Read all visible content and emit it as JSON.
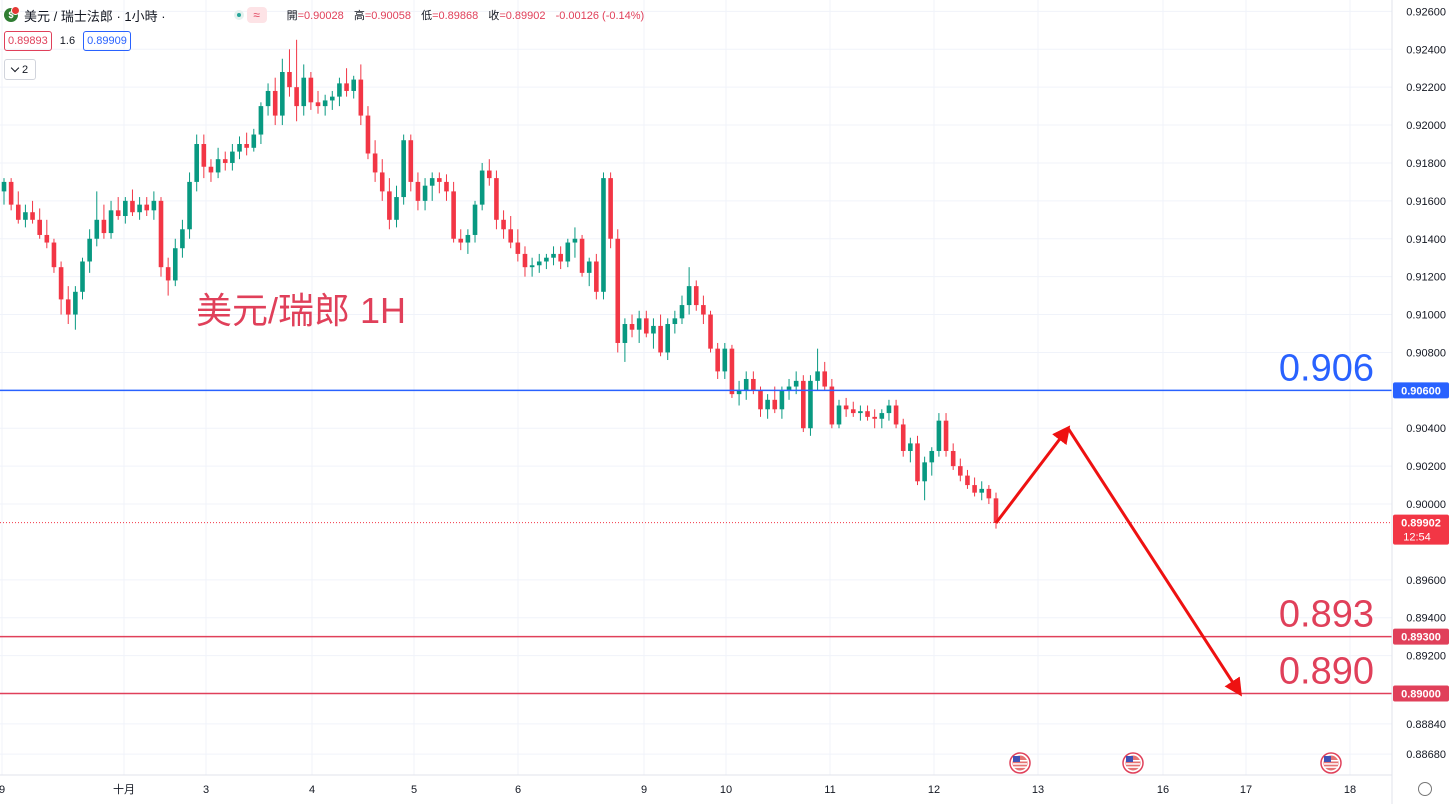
{
  "header": {
    "symbol": "美元 / 瑞士法郎 · 1小時 ·",
    "wave_icon": "≈",
    "ohlc": {
      "open_label": "開",
      "open": "=0.90028",
      "high_label": "高",
      "high": "=0.90058",
      "low_label": "低",
      "low": "=0.89868",
      "close_label": "收",
      "close": "=0.89902",
      "change": "-0.00126 (-0.14%)"
    }
  },
  "trade": {
    "bid": "0.89893",
    "spread": "1.6",
    "ask": "0.89909"
  },
  "indicator_toggle": {
    "count": "2"
  },
  "chart_title": "美元/瑞郎 1H",
  "chart_data": {
    "type": "candlestick",
    "ylim": [
      0.8857,
      0.9266
    ],
    "y_ticks": [
      {
        "v": 0.926,
        "t": "0.92600"
      },
      {
        "v": 0.924,
        "t": "0.92400"
      },
      {
        "v": 0.922,
        "t": "0.92200"
      },
      {
        "v": 0.92,
        "t": "0.92000"
      },
      {
        "v": 0.918,
        "t": "0.91800"
      },
      {
        "v": 0.916,
        "t": "0.91600"
      },
      {
        "v": 0.914,
        "t": "0.91400"
      },
      {
        "v": 0.912,
        "t": "0.91200"
      },
      {
        "v": 0.91,
        "t": "0.91000"
      },
      {
        "v": 0.908,
        "t": "0.90800"
      },
      {
        "v": 0.904,
        "t": "0.90400"
      },
      {
        "v": 0.902,
        "t": "0.90200"
      },
      {
        "v": 0.9,
        "t": "0.90000"
      },
      {
        "v": 0.896,
        "t": "0.89600"
      },
      {
        "v": 0.894,
        "t": "0.89400"
      },
      {
        "v": 0.892,
        "t": "0.89200"
      },
      {
        "v": 0.8884,
        "t": "0.88840"
      },
      {
        "v": 0.8868,
        "t": "0.88680"
      }
    ],
    "x_ticks": [
      "9",
      "十月",
      "3",
      "4",
      "5",
      "6",
      "9",
      "10",
      "11",
      "12",
      "13",
      "16",
      "17",
      "18"
    ],
    "candles": [
      [
        0.9165,
        0.9172,
        0.9158,
        0.917
      ],
      [
        0.917,
        0.9172,
        0.9155,
        0.9158
      ],
      [
        0.9158,
        0.9165,
        0.9148,
        0.915
      ],
      [
        0.915,
        0.9158,
        0.9146,
        0.9154
      ],
      [
        0.9154,
        0.916,
        0.9148,
        0.915
      ],
      [
        0.915,
        0.9156,
        0.914,
        0.9142
      ],
      [
        0.9142,
        0.915,
        0.9135,
        0.9138
      ],
      [
        0.9138,
        0.914,
        0.9122,
        0.9125
      ],
      [
        0.9125,
        0.9128,
        0.91,
        0.9108
      ],
      [
        0.9108,
        0.9115,
        0.9095,
        0.91
      ],
      [
        0.91,
        0.9115,
        0.9092,
        0.9112
      ],
      [
        0.9112,
        0.913,
        0.9108,
        0.9128
      ],
      [
        0.9128,
        0.9145,
        0.9122,
        0.914
      ],
      [
        0.914,
        0.9165,
        0.9136,
        0.915
      ],
      [
        0.915,
        0.9158,
        0.914,
        0.9143
      ],
      [
        0.9143,
        0.916,
        0.914,
        0.9155
      ],
      [
        0.9155,
        0.9162,
        0.915,
        0.9152
      ],
      [
        0.9152,
        0.9162,
        0.9148,
        0.916
      ],
      [
        0.916,
        0.9166,
        0.9152,
        0.9154
      ],
      [
        0.9154,
        0.9162,
        0.915,
        0.9158
      ],
      [
        0.9158,
        0.9162,
        0.9152,
        0.9155
      ],
      [
        0.9155,
        0.9165,
        0.915,
        0.916
      ],
      [
        0.916,
        0.9162,
        0.912,
        0.9125
      ],
      [
        0.9125,
        0.913,
        0.911,
        0.9118
      ],
      [
        0.9118,
        0.914,
        0.9115,
        0.9135
      ],
      [
        0.9135,
        0.915,
        0.913,
        0.9145
      ],
      [
        0.9145,
        0.9175,
        0.914,
        0.917
      ],
      [
        0.917,
        0.9195,
        0.9165,
        0.919
      ],
      [
        0.919,
        0.9195,
        0.9172,
        0.9178
      ],
      [
        0.9178,
        0.9182,
        0.917,
        0.9175
      ],
      [
        0.9175,
        0.9188,
        0.9172,
        0.9182
      ],
      [
        0.9182,
        0.9186,
        0.9176,
        0.918
      ],
      [
        0.918,
        0.919,
        0.9176,
        0.9186
      ],
      [
        0.9186,
        0.9194,
        0.9182,
        0.919
      ],
      [
        0.919,
        0.9196,
        0.9184,
        0.9188
      ],
      [
        0.9188,
        0.9198,
        0.9186,
        0.9195
      ],
      [
        0.9195,
        0.9212,
        0.919,
        0.921
      ],
      [
        0.921,
        0.9222,
        0.9205,
        0.9218
      ],
      [
        0.9218,
        0.9225,
        0.92,
        0.9205
      ],
      [
        0.9205,
        0.9235,
        0.92,
        0.9228
      ],
      [
        0.9228,
        0.924,
        0.9215,
        0.922
      ],
      [
        0.922,
        0.9245,
        0.9202,
        0.921
      ],
      [
        0.921,
        0.9232,
        0.9205,
        0.9225
      ],
      [
        0.9225,
        0.9228,
        0.9208,
        0.9212
      ],
      [
        0.9212,
        0.9218,
        0.9206,
        0.921
      ],
      [
        0.921,
        0.9216,
        0.9205,
        0.9213
      ],
      [
        0.9213,
        0.9218,
        0.9208,
        0.9215
      ],
      [
        0.9215,
        0.9225,
        0.921,
        0.9222
      ],
      [
        0.9222,
        0.923,
        0.9215,
        0.9218
      ],
      [
        0.9218,
        0.9226,
        0.9214,
        0.9224
      ],
      [
        0.9224,
        0.9232,
        0.92,
        0.9205
      ],
      [
        0.9205,
        0.921,
        0.9182,
        0.9185
      ],
      [
        0.9185,
        0.9192,
        0.917,
        0.9175
      ],
      [
        0.9175,
        0.9182,
        0.916,
        0.9165
      ],
      [
        0.9165,
        0.9172,
        0.9145,
        0.915
      ],
      [
        0.915,
        0.9168,
        0.9146,
        0.9162
      ],
      [
        0.9162,
        0.9195,
        0.9158,
        0.9192
      ],
      [
        0.9192,
        0.9195,
        0.9165,
        0.917
      ],
      [
        0.917,
        0.9175,
        0.9155,
        0.916
      ],
      [
        0.916,
        0.9172,
        0.9155,
        0.9168
      ],
      [
        0.9168,
        0.9175,
        0.916,
        0.9172
      ],
      [
        0.9172,
        0.9175,
        0.9164,
        0.917
      ],
      [
        0.917,
        0.9174,
        0.916,
        0.9165
      ],
      [
        0.9165,
        0.917,
        0.9138,
        0.914
      ],
      [
        0.914,
        0.9145,
        0.9134,
        0.9138
      ],
      [
        0.9138,
        0.9145,
        0.9132,
        0.9142
      ],
      [
        0.9142,
        0.916,
        0.9138,
        0.9158
      ],
      [
        0.9158,
        0.918,
        0.9155,
        0.9176
      ],
      [
        0.9176,
        0.9182,
        0.9168,
        0.9172
      ],
      [
        0.9172,
        0.9176,
        0.9145,
        0.915
      ],
      [
        0.915,
        0.9155,
        0.914,
        0.9145
      ],
      [
        0.9145,
        0.9152,
        0.9135,
        0.9138
      ],
      [
        0.9138,
        0.9145,
        0.9128,
        0.9132
      ],
      [
        0.9132,
        0.9136,
        0.912,
        0.9125
      ],
      [
        0.9125,
        0.913,
        0.912,
        0.9126
      ],
      [
        0.9126,
        0.9132,
        0.9122,
        0.9128
      ],
      [
        0.9128,
        0.9132,
        0.9124,
        0.913
      ],
      [
        0.913,
        0.9136,
        0.9126,
        0.9132
      ],
      [
        0.9132,
        0.9136,
        0.9124,
        0.9128
      ],
      [
        0.9128,
        0.914,
        0.9125,
        0.9138
      ],
      [
        0.9138,
        0.9146,
        0.913,
        0.914
      ],
      [
        0.914,
        0.9142,
        0.912,
        0.9122
      ],
      [
        0.9122,
        0.913,
        0.9115,
        0.9128
      ],
      [
        0.9128,
        0.9132,
        0.9108,
        0.9112
      ],
      [
        0.9112,
        0.9175,
        0.9108,
        0.9172
      ],
      [
        0.9172,
        0.9175,
        0.9135,
        0.914
      ],
      [
        0.914,
        0.9145,
        0.908,
        0.9085
      ],
      [
        0.9085,
        0.9098,
        0.9075,
        0.9095
      ],
      [
        0.9095,
        0.91,
        0.9088,
        0.9092
      ],
      [
        0.9092,
        0.9102,
        0.9085,
        0.9098
      ],
      [
        0.9098,
        0.9102,
        0.9088,
        0.909
      ],
      [
        0.909,
        0.9098,
        0.9082,
        0.9094
      ],
      [
        0.9094,
        0.91,
        0.9078,
        0.908
      ],
      [
        0.908,
        0.9098,
        0.9076,
        0.9095
      ],
      [
        0.9095,
        0.9102,
        0.909,
        0.9098
      ],
      [
        0.9098,
        0.911,
        0.9095,
        0.9105
      ],
      [
        0.9105,
        0.9125,
        0.91,
        0.9115
      ],
      [
        0.9115,
        0.9118,
        0.9102,
        0.9105
      ],
      [
        0.9105,
        0.911,
        0.9095,
        0.91
      ],
      [
        0.91,
        0.9102,
        0.908,
        0.9082
      ],
      [
        0.9082,
        0.9085,
        0.9066,
        0.907
      ],
      [
        0.907,
        0.9085,
        0.9066,
        0.9082
      ],
      [
        0.9082,
        0.9084,
        0.9056,
        0.9058
      ],
      [
        0.9058,
        0.9065,
        0.9052,
        0.906
      ],
      [
        0.906,
        0.907,
        0.9055,
        0.9066
      ],
      [
        0.9066,
        0.907,
        0.9058,
        0.906
      ],
      [
        0.906,
        0.9062,
        0.9046,
        0.905
      ],
      [
        0.905,
        0.9058,
        0.9045,
        0.9055
      ],
      [
        0.9055,
        0.9062,
        0.9048,
        0.905
      ],
      [
        0.905,
        0.9062,
        0.9045,
        0.906
      ],
      [
        0.906,
        0.9066,
        0.9055,
        0.9062
      ],
      [
        0.9062,
        0.907,
        0.9058,
        0.9065
      ],
      [
        0.9065,
        0.9068,
        0.9038,
        0.904
      ],
      [
        0.904,
        0.9068,
        0.9036,
        0.9065
      ],
      [
        0.9065,
        0.9082,
        0.906,
        0.907
      ],
      [
        0.907,
        0.9075,
        0.906,
        0.9062
      ],
      [
        0.9062,
        0.9066,
        0.904,
        0.9042
      ],
      [
        0.9042,
        0.9055,
        0.904,
        0.9052
      ],
      [
        0.9052,
        0.9056,
        0.9046,
        0.905
      ],
      [
        0.905,
        0.9054,
        0.9046,
        0.9048
      ],
      [
        0.9048,
        0.9052,
        0.9044,
        0.9049
      ],
      [
        0.9049,
        0.9052,
        0.9044,
        0.9046
      ],
      [
        0.9046,
        0.905,
        0.904,
        0.9045
      ],
      [
        0.9045,
        0.905,
        0.904,
        0.9048
      ],
      [
        0.9048,
        0.9055,
        0.9044,
        0.9052
      ],
      [
        0.9052,
        0.9055,
        0.904,
        0.9042
      ],
      [
        0.9042,
        0.9045,
        0.9025,
        0.9028
      ],
      [
        0.9028,
        0.9035,
        0.9022,
        0.9032
      ],
      [
        0.9032,
        0.9036,
        0.901,
        0.9012
      ],
      [
        0.9012,
        0.9025,
        0.9002,
        0.9022
      ],
      [
        0.9022,
        0.903,
        0.9015,
        0.9028
      ],
      [
        0.9028,
        0.9048,
        0.9025,
        0.9044
      ],
      [
        0.9044,
        0.9048,
        0.9025,
        0.9028
      ],
      [
        0.9028,
        0.9032,
        0.9018,
        0.902
      ],
      [
        0.902,
        0.9024,
        0.9012,
        0.9015
      ],
      [
        0.9015,
        0.9018,
        0.9008,
        0.901
      ],
      [
        0.901,
        0.9014,
        0.9004,
        0.9006
      ],
      [
        0.9006,
        0.9012,
        0.9002,
        0.9008
      ],
      [
        0.9008,
        0.901,
        0.9,
        0.9003
      ],
      [
        0.9003,
        0.9006,
        0.8987,
        0.899
      ]
    ],
    "price_lines": [
      {
        "value": 0.906,
        "label": "0.906",
        "axis_label": "0.90600",
        "color": "#2962ff"
      },
      {
        "value": 0.893,
        "label": "0.893",
        "axis_label": "0.89300",
        "color": "#e0405a"
      },
      {
        "value": 0.89,
        "label": "0.890",
        "axis_label": "0.89000",
        "color": "#e0405a"
      }
    ],
    "last_price": {
      "value": 0.89902,
      "label": "0.89902",
      "countdown": "12:54"
    },
    "projection": [
      {
        "x": "12",
        "y": 0.899
      },
      {
        "x": "13",
        "y": 0.904
      },
      {
        "x": "17",
        "y": 0.89
      }
    ],
    "event_markers": [
      "12",
      "16",
      "18"
    ],
    "colors": {
      "up": "#089981",
      "down": "#f23645",
      "red_text": "#e0405a",
      "blue": "#2962ff",
      "arrow": "#ee1111"
    }
  }
}
